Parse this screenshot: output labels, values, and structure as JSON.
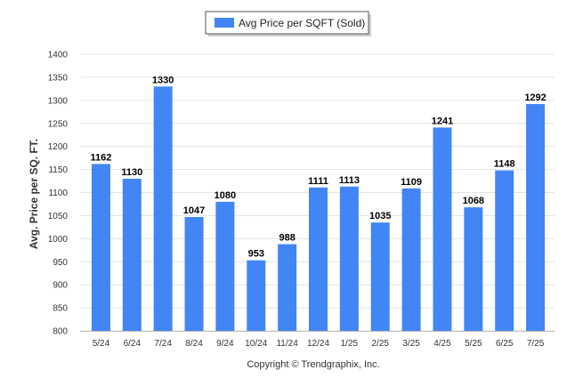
{
  "chart_data": {
    "type": "bar",
    "categories": [
      "5/24",
      "6/24",
      "7/24",
      "8/24",
      "9/24",
      "10/24",
      "11/24",
      "12/24",
      "1/25",
      "2/25",
      "3/25",
      "4/25",
      "5/25",
      "6/25",
      "7/25"
    ],
    "series": [
      {
        "name": "Avg Price per SQFT (Sold)",
        "values": [
          1162,
          1130,
          1330,
          1047,
          1080,
          953,
          988,
          1111,
          1113,
          1035,
          1109,
          1241,
          1068,
          1148,
          1292
        ]
      }
    ],
    "ylabel": "Avg. Price per SQ. FT.",
    "xlabel": "",
    "ylim": [
      800,
      1400
    ],
    "yticks": [
      800,
      850,
      900,
      950,
      1000,
      1050,
      1100,
      1150,
      1200,
      1250,
      1300,
      1350,
      1400
    ],
    "grid": true,
    "legend_position": "top-center",
    "bar_color": "#4285f4",
    "data_labels": true
  },
  "footer": {
    "copyright": "Copyright © Trendgraphix, Inc."
  }
}
